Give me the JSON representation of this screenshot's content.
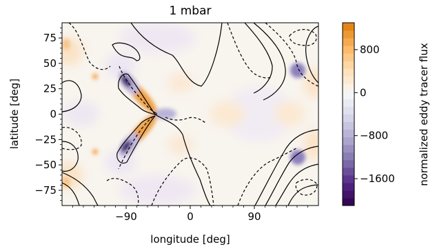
{
  "chart_data": {
    "type": "heatmap",
    "title": "1 mbar",
    "xlabel": "longitude [deg]",
    "ylabel": "latitude [deg]",
    "xlim": [
      -180,
      180
    ],
    "ylim": [
      -90,
      90
    ],
    "x_ticks": [
      -90,
      0,
      90
    ],
    "x_tick_labels": [
      "−90",
      "0",
      "90"
    ],
    "y_ticks": [
      75,
      50,
      25,
      0,
      -25,
      -50,
      -75
    ],
    "y_tick_labels": [
      "75",
      "50",
      "25",
      "0",
      "−25",
      "−50",
      "−75"
    ],
    "colorbar": {
      "label": "normalized eddy tracer flux",
      "range": [
        -2100,
        1300
      ],
      "ticks": [
        800,
        0,
        -800,
        -1600
      ],
      "tick_labels": [
        "800",
        "0",
        "−800",
        "−1600"
      ],
      "colormap": "PuOr_r",
      "levels": 24
    },
    "features": [
      {
        "kind": "extremum",
        "sign": "negative",
        "lon": -93,
        "lat": 32,
        "value": -1500
      },
      {
        "kind": "extremum",
        "sign": "negative",
        "lon": -93,
        "lat": -32,
        "value": -1500
      },
      {
        "kind": "extremum",
        "sign": "positive",
        "lon": -75,
        "lat": 12,
        "value": 1000
      },
      {
        "kind": "extremum",
        "sign": "positive",
        "lon": -75,
        "lat": -12,
        "value": 1000
      },
      {
        "kind": "extremum",
        "sign": "negative",
        "lon": 147,
        "lat": 45,
        "value": -900
      },
      {
        "kind": "extremum",
        "sign": "negative",
        "lon": 147,
        "lat": -45,
        "value": -900
      },
      {
        "kind": "extremum",
        "sign": "positive",
        "lon": -140,
        "lat": 35,
        "value": 800
      },
      {
        "kind": "extremum",
        "sign": "positive",
        "lon": -140,
        "lat": -35,
        "value": 800
      }
    ],
    "contours": "solid lines positive, dashed lines negative"
  }
}
